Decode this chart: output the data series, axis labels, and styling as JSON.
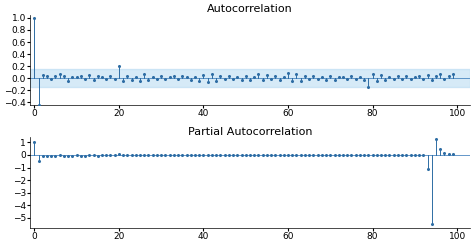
{
  "title_acf": "Autocorrelation",
  "title_pacf": "Partial Autocorrelation",
  "acf_values": [
    1.0,
    -0.45,
    0.05,
    0.03,
    -0.02,
    0.04,
    0.06,
    0.03,
    -0.04,
    0.02,
    0.01,
    0.03,
    -0.02,
    0.05,
    -0.03,
    0.04,
    0.02,
    -0.01,
    0.03,
    -0.02,
    0.2,
    -0.05,
    0.04,
    -0.03,
    0.02,
    -0.04,
    0.06,
    -0.03,
    0.02,
    -0.01,
    0.03,
    -0.02,
    0.01,
    0.04,
    -0.02,
    0.03,
    0.01,
    -0.03,
    0.02,
    -0.04,
    0.05,
    -0.06,
    0.07,
    -0.04,
    0.03,
    -0.02,
    0.04,
    -0.01,
    0.02,
    -0.03,
    0.04,
    -0.03,
    0.02,
    0.06,
    -0.03,
    0.05,
    -0.02,
    0.04,
    -0.03,
    0.02,
    0.08,
    -0.05,
    0.06,
    -0.04,
    0.03,
    -0.02,
    0.04,
    -0.01,
    0.02,
    -0.03,
    0.04,
    -0.03,
    0.02,
    0.01,
    -0.02,
    0.03,
    -0.01,
    0.02,
    -0.03,
    -0.15,
    0.06,
    -0.04,
    0.05,
    -0.03,
    0.02,
    -0.01,
    0.03,
    -0.02,
    0.04,
    -0.02,
    0.01,
    0.03,
    -0.02,
    0.05,
    -0.03,
    0.04,
    0.07,
    -0.02,
    0.03,
    0.06
  ],
  "pacf_values": [
    1.0,
    -0.45,
    -0.1,
    -0.12,
    -0.08,
    -0.05,
    -0.04,
    -0.06,
    -0.07,
    -0.05,
    -0.04,
    -0.05,
    -0.06,
    -0.04,
    -0.03,
    -0.05,
    -0.04,
    -0.03,
    -0.04,
    -0.03,
    0.05,
    -0.04,
    -0.03,
    -0.02,
    -0.01,
    -0.03,
    -0.02,
    -0.01,
    -0.02,
    -0.01,
    -0.02,
    -0.01,
    -0.02,
    -0.01,
    -0.02,
    -0.01,
    -0.01,
    -0.02,
    -0.01,
    -0.02,
    -0.01,
    -0.02,
    -0.01,
    -0.02,
    -0.01,
    -0.02,
    -0.01,
    -0.02,
    -0.01,
    -0.02,
    -0.01,
    -0.02,
    -0.01,
    -0.02,
    -0.01,
    -0.02,
    -0.01,
    -0.02,
    -0.01,
    -0.02,
    -0.01,
    -0.02,
    -0.01,
    -0.02,
    -0.01,
    -0.02,
    -0.01,
    -0.02,
    -0.01,
    -0.02,
    -0.01,
    -0.02,
    -0.01,
    -0.02,
    -0.01,
    -0.02,
    -0.01,
    -0.02,
    -0.01,
    -0.02,
    -0.01,
    -0.02,
    -0.01,
    -0.02,
    -0.01,
    -0.02,
    -0.01,
    -0.02,
    -0.01,
    -0.02,
    -0.01,
    -0.02,
    -0.01,
    -1.1,
    -5.5,
    1.3,
    0.5,
    0.15,
    0.1,
    0.08
  ],
  "acf_ylim": [
    -0.45,
    1.05
  ],
  "pacf_ylim": [
    -5.8,
    1.4
  ],
  "acf_yticks": [
    1.0,
    0.8,
    0.6,
    0.4,
    0.2,
    0.0,
    -0.2,
    -0.4
  ],
  "pacf_yticks": [
    1,
    0,
    -1,
    -2,
    -3,
    -4,
    -5
  ],
  "conf_band": 0.15,
  "conf_color": "#aed6f1",
  "line_color": "#2e6da4",
  "title_fontsize": 8,
  "tick_fontsize": 6.5,
  "figsize": [
    4.74,
    2.45
  ],
  "dpi": 100
}
